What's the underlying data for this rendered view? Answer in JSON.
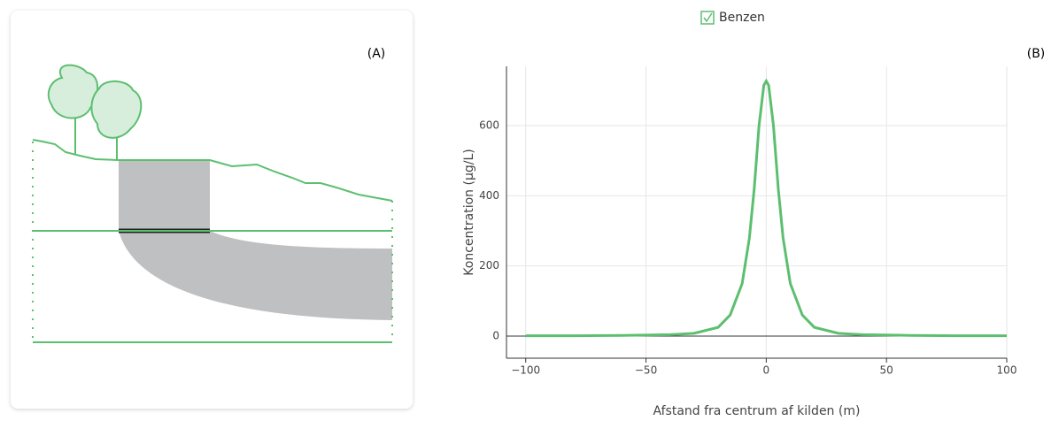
{
  "panel_labels": [
    "(A)",
    "(B)"
  ],
  "chart_data": {
    "type": "line",
    "x_label": "Afstand fra centrum af kilden (m)",
    "y_label": "Koncentration (µg/L)",
    "x": [
      -100,
      -80,
      -60,
      -40,
      -30,
      -20,
      -15,
      -10,
      -7,
      -5,
      -3,
      -1,
      0,
      1,
      3,
      5,
      7,
      10,
      15,
      20,
      30,
      40,
      60,
      80,
      100
    ],
    "series": [
      {
        "name": "Benzen",
        "color": "#5cbf70",
        "values": [
          1,
          1,
          2,
          4,
          8,
          25,
          60,
          150,
          280,
          420,
          600,
          715,
          727,
          715,
          600,
          420,
          280,
          150,
          60,
          25,
          8,
          4,
          2,
          1,
          1
        ]
      }
    ],
    "xlim": [
      -108,
      100
    ],
    "xticks": [
      {
        "value": -100,
        "label": "−100"
      },
      {
        "value": -50,
        "label": "−50"
      },
      0,
      50,
      100
    ],
    "ylim": [
      -63,
      769
    ],
    "yticks": [
      0,
      200,
      400,
      600
    ],
    "grid": true
  }
}
